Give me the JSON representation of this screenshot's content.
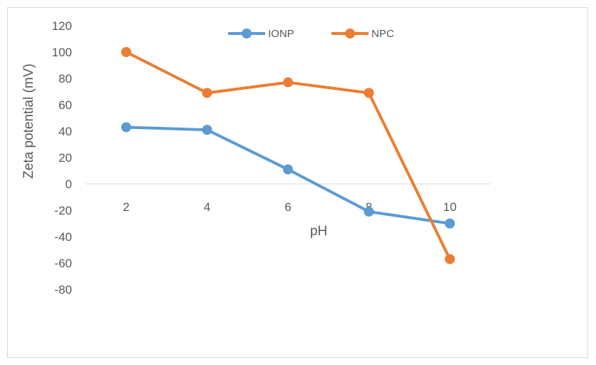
{
  "chart_data": {
    "type": "line",
    "title": "",
    "xlabel": "pH",
    "ylabel": "Zeta potential (mV)",
    "x": [
      2,
      4,
      6,
      8,
      10
    ],
    "x_tick_labels": [
      "2",
      "4",
      "6",
      "8",
      "10"
    ],
    "y_tick_labels": [
      "120",
      "100",
      "80",
      "60",
      "40",
      "20",
      "0",
      "-20",
      "-40",
      "-60",
      "-80"
    ],
    "ylim": [
      -80,
      120
    ],
    "grid": false,
    "legend_position": "top-center",
    "series": [
      {
        "name": "IONP",
        "color": "#5b9bd5",
        "values": [
          43,
          41,
          11,
          -21,
          -30
        ]
      },
      {
        "name": "NPC",
        "color": "#ed7d31",
        "values": [
          100,
          69,
          77,
          69,
          -57
        ]
      }
    ]
  }
}
